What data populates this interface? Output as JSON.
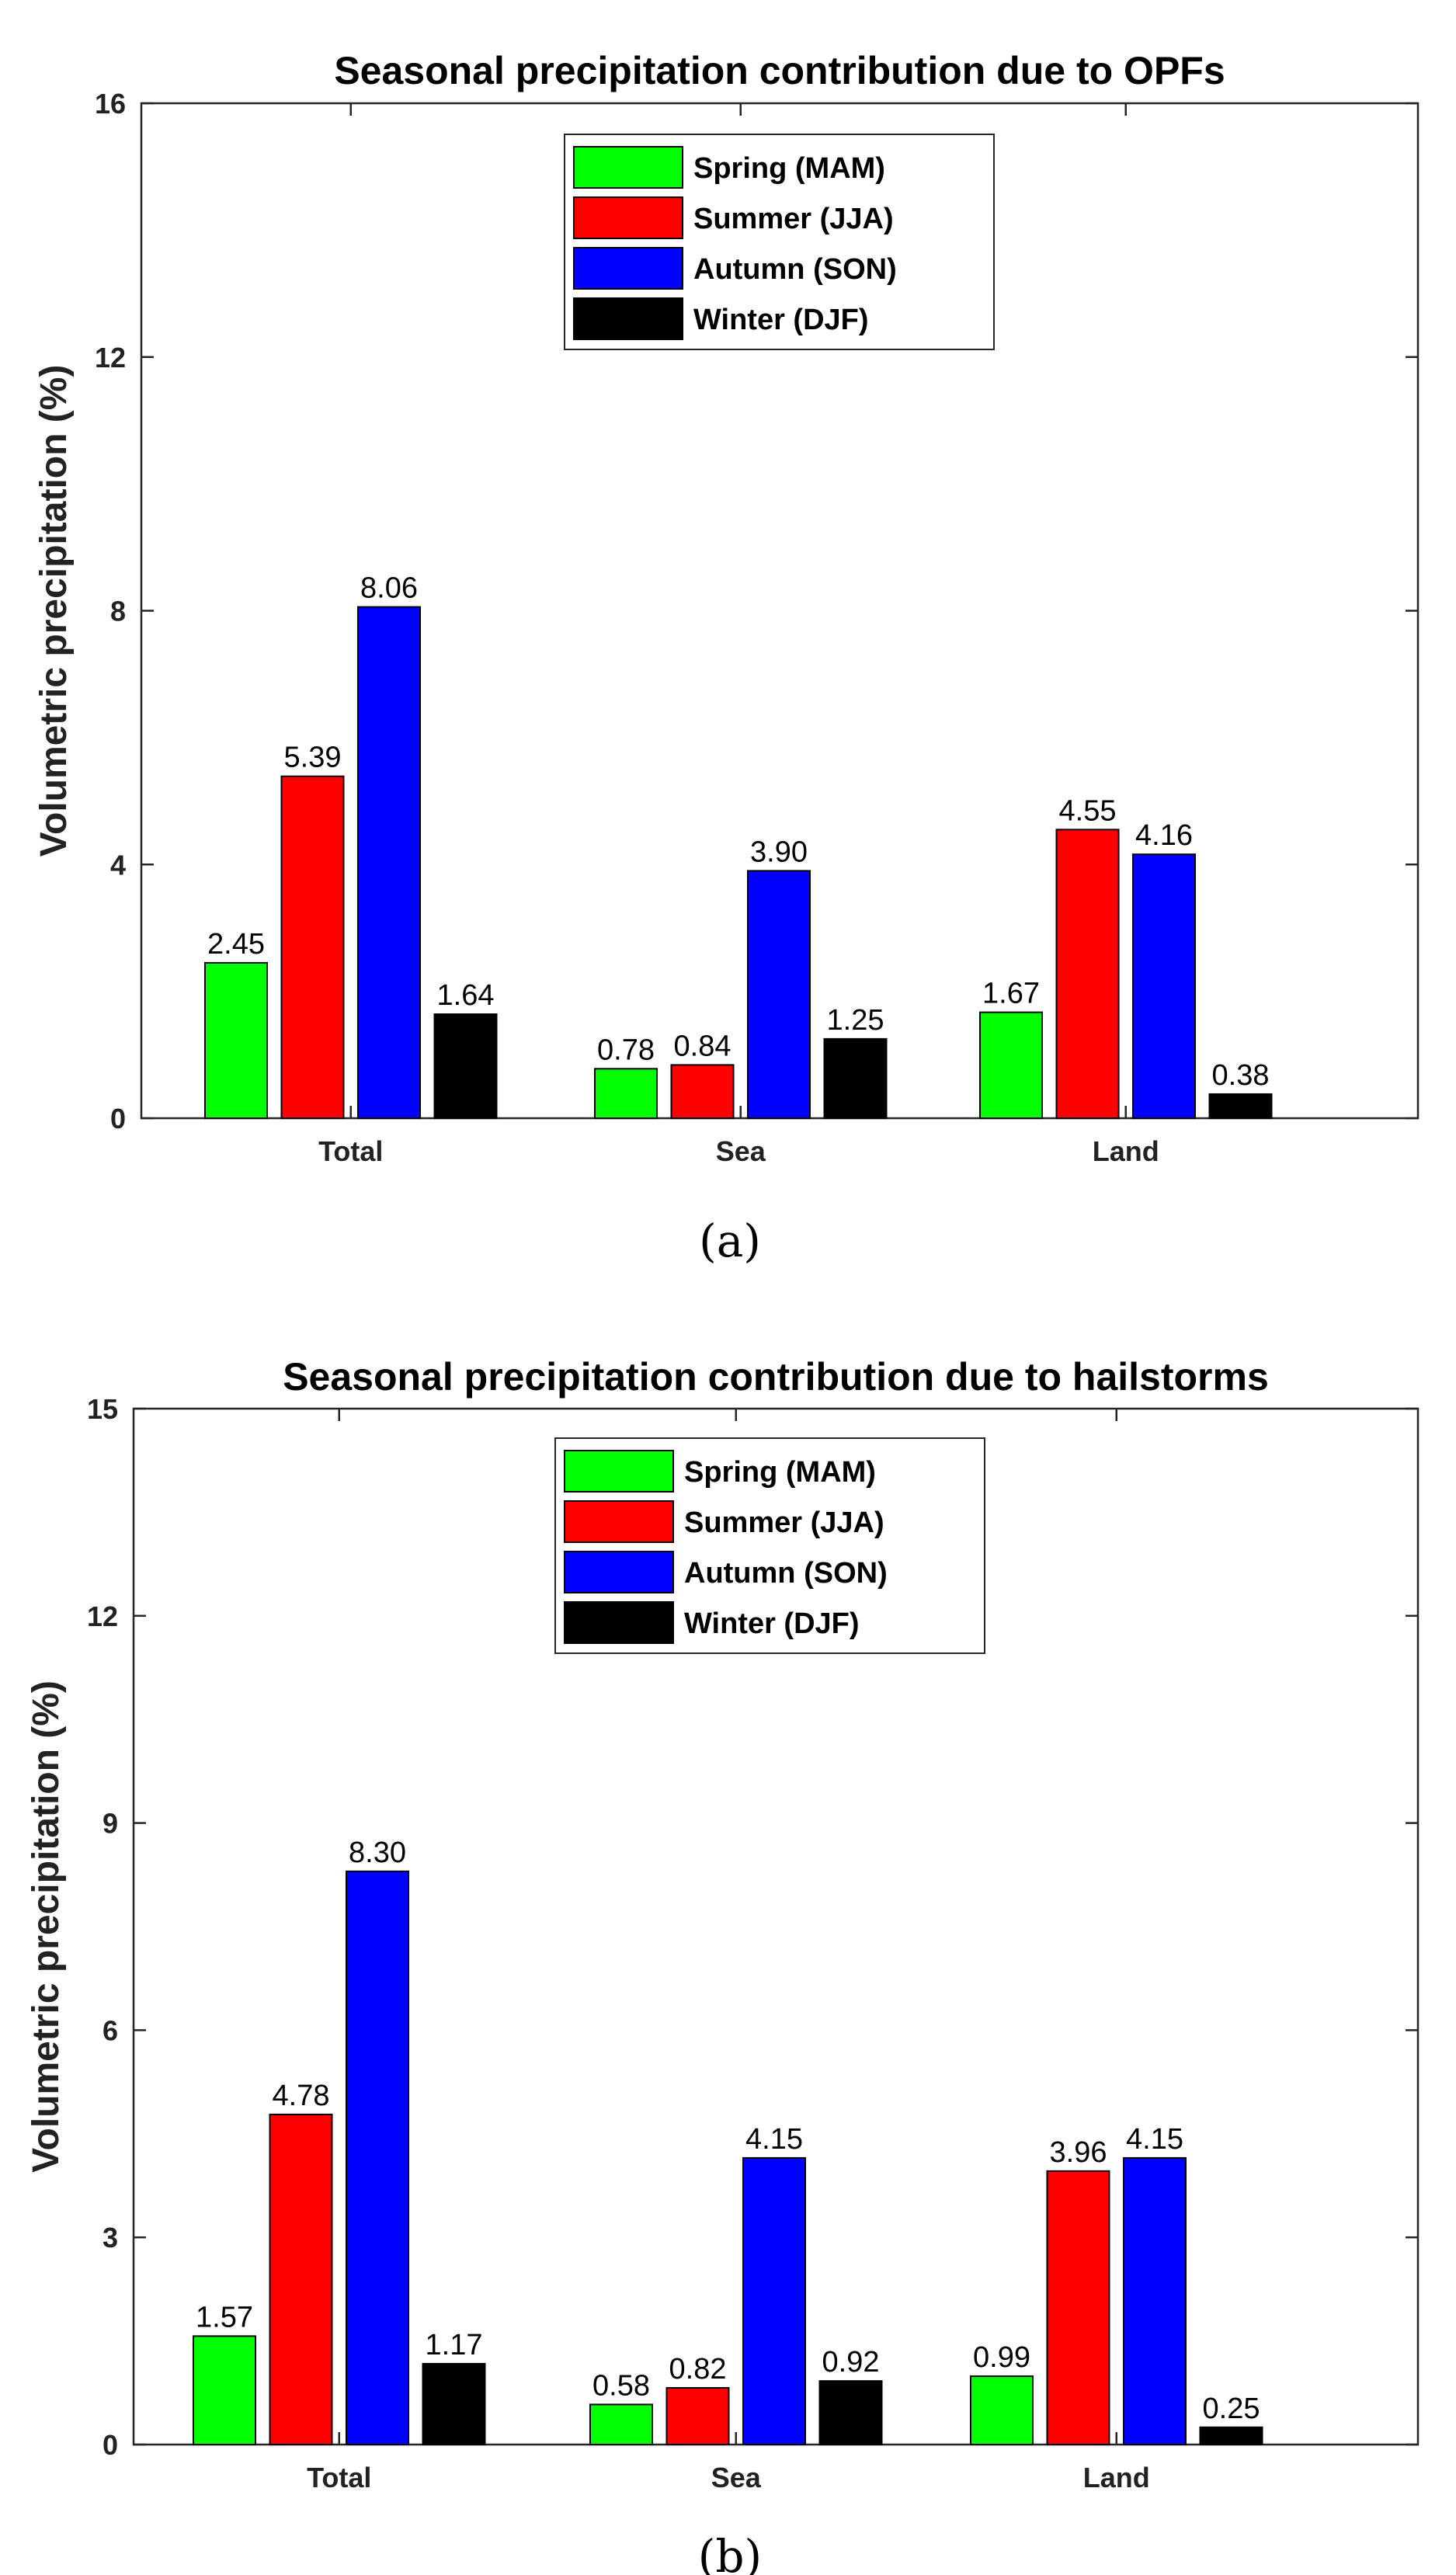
{
  "chart_data": [
    {
      "type": "bar",
      "title": "Seasonal precipitation contribution due to OPFs",
      "xlabel": "",
      "ylabel": "Volumetric precipitation (%)",
      "ylim": [
        0,
        16
      ],
      "yticks": [
        0,
        4,
        8,
        12,
        16
      ],
      "categories": [
        "Total",
        "Sea",
        "Land"
      ],
      "series": [
        {
          "name": "Spring (MAM)",
          "color": "#00ff00",
          "values": [
            2.45,
            0.78,
            1.67
          ],
          "labels": [
            "2.45",
            "0.78",
            "1.67"
          ]
        },
        {
          "name": "Summer (JJA)",
          "color": "#ff0000",
          "values": [
            5.39,
            0.84,
            4.55
          ],
          "labels": [
            "5.39",
            "0.84",
            "4.55"
          ]
        },
        {
          "name": "Autumn (SON)",
          "color": "#0000ff",
          "values": [
            8.06,
            3.9,
            4.16
          ],
          "labels": [
            "8.06",
            "3.90",
            "4.16"
          ]
        },
        {
          "name": "Winter (DJF)",
          "color": "#000000",
          "values": [
            1.64,
            1.25,
            0.38
          ],
          "labels": [
            "1.64",
            "1.25",
            "0.38"
          ]
        }
      ],
      "legend": "top-center",
      "caption": "(a)"
    },
    {
      "type": "bar",
      "title": "Seasonal precipitation contribution due to hailstorms",
      "xlabel": "",
      "ylabel": "Volumetric precipitation (%)",
      "ylim": [
        0,
        15
      ],
      "yticks": [
        0,
        3,
        6,
        9,
        12,
        15
      ],
      "categories": [
        "Total",
        "Sea",
        "Land"
      ],
      "series": [
        {
          "name": "Spring (MAM)",
          "color": "#00ff00",
          "values": [
            1.57,
            0.58,
            0.99
          ],
          "labels": [
            "1.57",
            "0.58",
            "0.99"
          ]
        },
        {
          "name": "Summer (JJA)",
          "color": "#ff0000",
          "values": [
            4.78,
            0.82,
            3.96
          ],
          "labels": [
            "4.78",
            "0.82",
            "3.96"
          ]
        },
        {
          "name": "Autumn (SON)",
          "color": "#0000ff",
          "values": [
            8.3,
            4.15,
            4.15
          ],
          "labels": [
            "8.30",
            "4.15",
            "4.15"
          ]
        },
        {
          "name": "Winter (DJF)",
          "color": "#000000",
          "values": [
            1.17,
            0.92,
            0.25
          ],
          "labels": [
            "1.17",
            "0.92",
            "0.25"
          ]
        }
      ],
      "legend": "top-center",
      "caption": "(b)"
    }
  ]
}
